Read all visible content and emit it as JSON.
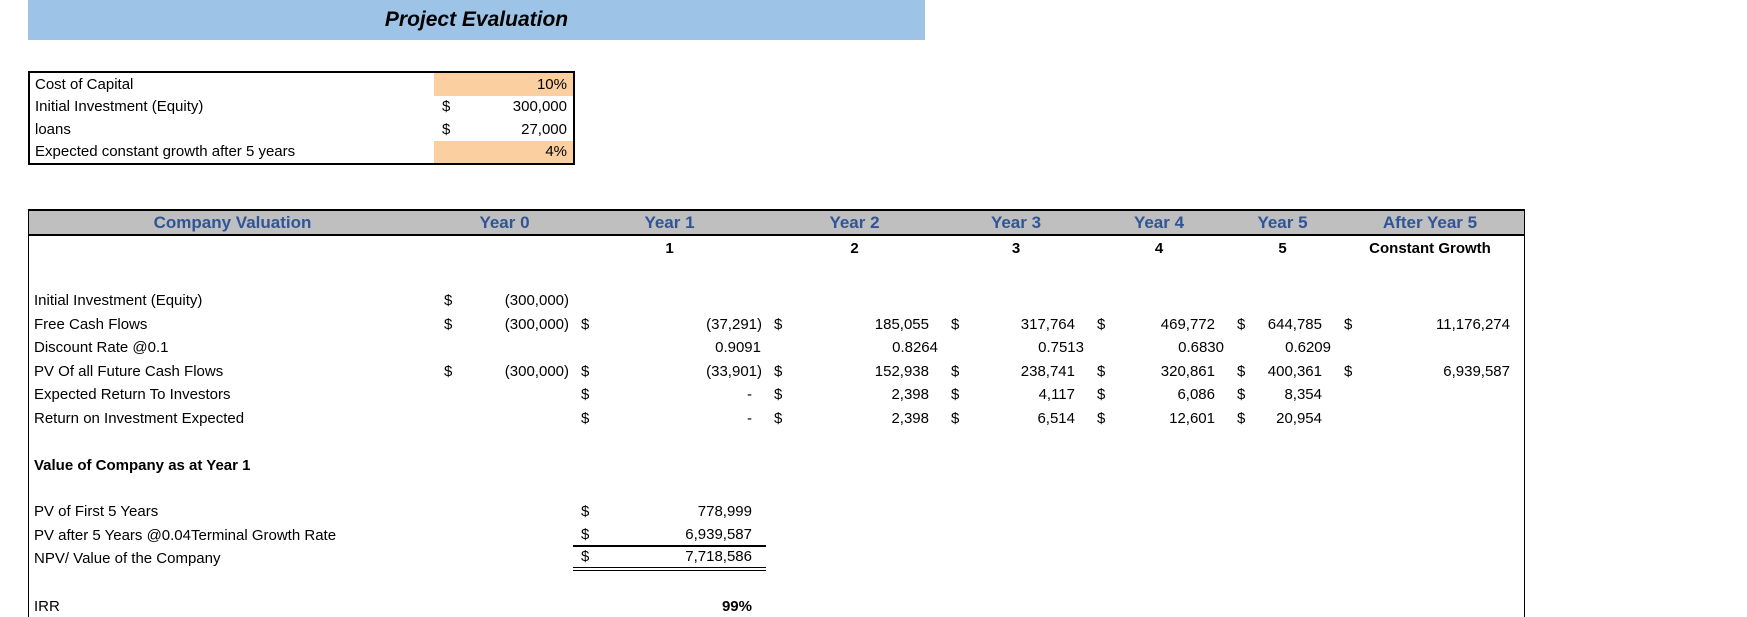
{
  "banner": {
    "title": "Project Evaluation"
  },
  "assumptions": {
    "rows": [
      {
        "label": "Cost of Capital",
        "cur": "",
        "value": "10%",
        "highlight": true
      },
      {
        "label": "Initial Investment (Equity)",
        "cur": "$",
        "value": "300,000",
        "highlight": false
      },
      {
        "label": "loans",
        "cur": "$",
        "value": "27,000",
        "highlight": false
      },
      {
        "label": "Expected constant growth after 5 years",
        "cur": "",
        "value": "4%",
        "highlight": true
      }
    ]
  },
  "valuation": {
    "title": "Company Valuation",
    "year_headers": [
      "Year 0",
      "Year 1",
      "Year 2",
      "Year 3",
      "Year 4",
      "Year 5",
      "After Year 5"
    ],
    "subheader": [
      "",
      "1",
      "2",
      "3",
      "4",
      "5",
      "Constant Growth"
    ],
    "rows": [
      {
        "label": "Initial Investment (Equity)",
        "cells": [
          {
            "cur": "$",
            "val": "(300,000)"
          },
          null,
          null,
          null,
          null,
          null,
          null
        ]
      },
      {
        "label": "Free Cash Flows",
        "cells": [
          {
            "cur": "$",
            "val": "(300,000)"
          },
          {
            "cur": "$",
            "val": "(37,291)"
          },
          {
            "cur": "$",
            "val": "185,055"
          },
          {
            "cur": "$",
            "val": "317,764"
          },
          {
            "cur": "$",
            "val": "469,772"
          },
          {
            "cur": "$",
            "val": "644,785"
          },
          {
            "cur": "$",
            "val": "11,176,274"
          }
        ]
      },
      {
        "label": "Discount Rate @0.1",
        "cells": [
          null,
          {
            "cur": "",
            "val": "0.9091"
          },
          {
            "cur": "",
            "val": "0.8264"
          },
          {
            "cur": "",
            "val": "0.7513"
          },
          {
            "cur": "",
            "val": "0.6830"
          },
          {
            "cur": "",
            "val": "0.6209"
          },
          null
        ]
      },
      {
        "label": "PV Of all Future Cash Flows",
        "cells": [
          {
            "cur": "$",
            "val": "(300,000)"
          },
          {
            "cur": "$",
            "val": "(33,901)"
          },
          {
            "cur": "$",
            "val": "152,938"
          },
          {
            "cur": "$",
            "val": "238,741"
          },
          {
            "cur": "$",
            "val": "320,861"
          },
          {
            "cur": "$",
            "val": "400,361"
          },
          {
            "cur": "$",
            "val": "6,939,587"
          }
        ]
      },
      {
        "label": "Expected Return To Investors",
        "cells": [
          null,
          {
            "cur": "$",
            "val": "-"
          },
          {
            "cur": "$",
            "val": "2,398"
          },
          {
            "cur": "$",
            "val": "4,117"
          },
          {
            "cur": "$",
            "val": "6,086"
          },
          {
            "cur": "$",
            "val": "8,354"
          },
          null
        ]
      },
      {
        "label": "Return on Investment Expected",
        "cells": [
          null,
          {
            "cur": "$",
            "val": "-"
          },
          {
            "cur": "$",
            "val": "2,398"
          },
          {
            "cur": "$",
            "val": "6,514"
          },
          {
            "cur": "$",
            "val": "12,601"
          },
          {
            "cur": "$",
            "val": "20,954"
          },
          null
        ]
      }
    ],
    "section_label": "Value of Company as at Year 1",
    "summary_rows": [
      {
        "label": "PV of First 5 Years",
        "cur": "$",
        "val": "778,999",
        "border": "none"
      },
      {
        "label": "PV after 5 Years @0.04Terminal Growth Rate",
        "cur": "$",
        "val": "6,939,587",
        "border": "single"
      },
      {
        "label": "NPV/ Value of the Company",
        "cur": "$",
        "val": "7,718,586",
        "border": "double"
      }
    ],
    "irr": {
      "label": "IRR",
      "value": "99%"
    }
  },
  "colors": {
    "banner_bg": "#9DC3E6",
    "highlight_bg": "#FBCFA0",
    "header_bg": "#BFBFBF",
    "header_text": "#2F5597"
  }
}
